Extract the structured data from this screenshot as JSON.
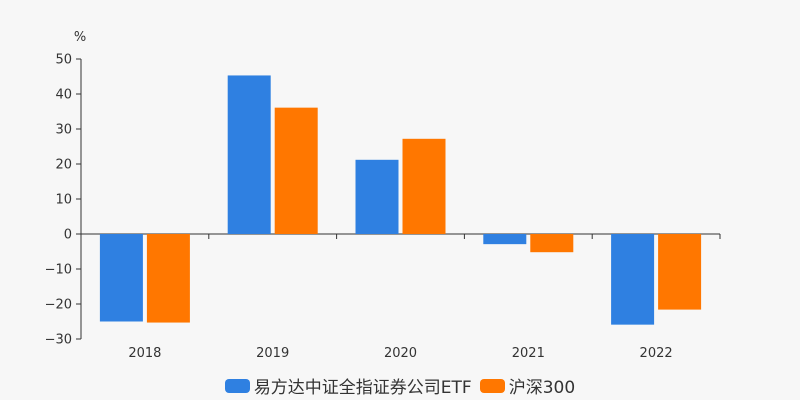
{
  "chart_data": {
    "type": "bar",
    "unit_label": "%",
    "categories": [
      "2018",
      "2019",
      "2020",
      "2021",
      "2022"
    ],
    "series": [
      {
        "name": "易方达中证全指证券公司ETF",
        "color": "#2f80e1",
        "values": [
          -25.0,
          45.3,
          21.2,
          -2.9,
          -25.9
        ]
      },
      {
        "name": "沪深300",
        "color": "#ff7700",
        "values": [
          -25.3,
          36.1,
          27.2,
          -5.2,
          -21.6
        ]
      }
    ],
    "ylim": [
      -30,
      50
    ],
    "yticks": [
      "50",
      "40",
      "30",
      "20",
      "10",
      "0",
      "−10",
      "−20",
      "−30"
    ],
    "ytick_values": [
      50,
      40,
      30,
      20,
      10,
      0,
      -10,
      -20,
      -30
    ],
    "grid": false,
    "legend_position": "bottom"
  }
}
